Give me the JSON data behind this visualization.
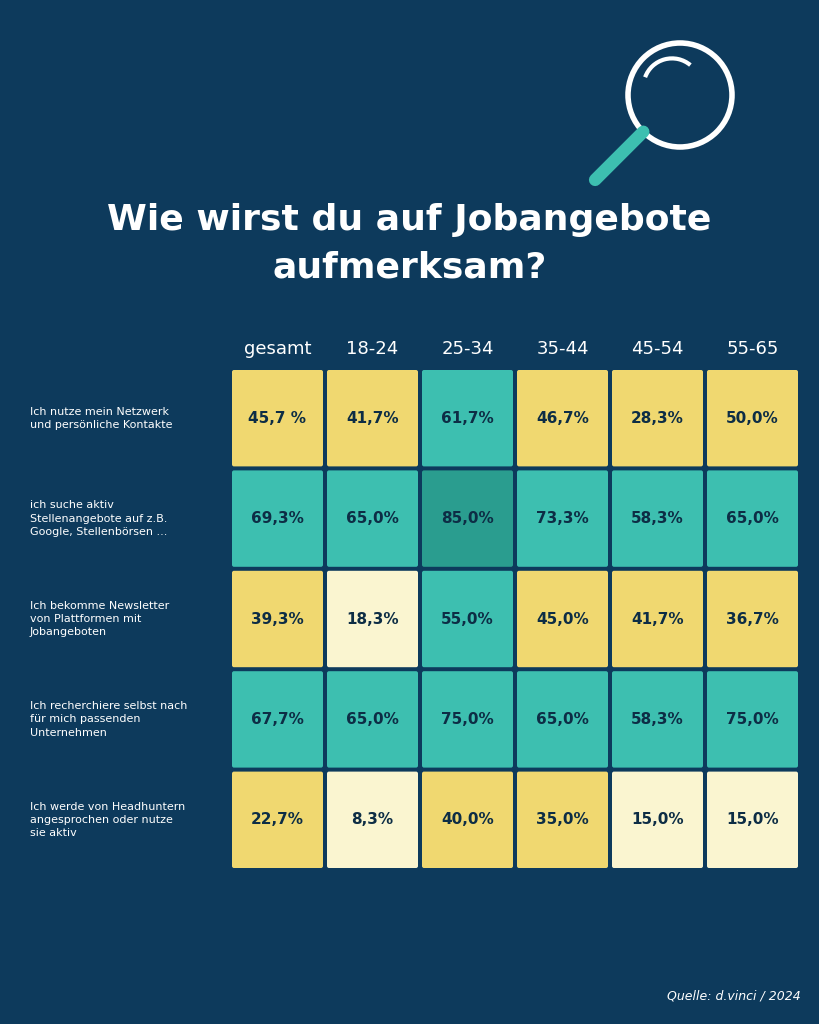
{
  "title_line1": "Wie wirst du auf Jobangebote",
  "title_line2": "aufmerksam?",
  "background_color": "#0d3a5c",
  "columns": [
    "gesamt",
    "18-24",
    "25-34",
    "35-44",
    "45-54",
    "55-65"
  ],
  "rows": [
    {
      "label": "Ich nutze mein Netzwerk\nund persönliche Kontakte",
      "values": [
        45.7,
        41.7,
        61.7,
        46.7,
        28.3,
        50.0
      ],
      "value_labels": [
        "45,7 %",
        "41,7%",
        "61,7%",
        "46,7%",
        "28,3%",
        "50,0%"
      ]
    },
    {
      "label": "ich suche aktiv\nStellenangebote auf z.B.\nGoogle, Stellenbörsen ...",
      "values": [
        69.3,
        65.0,
        85.0,
        73.3,
        58.3,
        65.0
      ],
      "value_labels": [
        "69,3%",
        "65,0%",
        "85,0%",
        "73,3%",
        "58,3%",
        "65,0%"
      ]
    },
    {
      "label": "Ich bekomme Newsletter\nvon Plattformen mit\nJobangeboten",
      "values": [
        39.3,
        18.3,
        55.0,
        45.0,
        41.7,
        36.7
      ],
      "value_labels": [
        "39,3%",
        "18,3%",
        "55,0%",
        "45,0%",
        "41,7%",
        "36,7%"
      ]
    },
    {
      "label": "Ich recherchiere selbst nach\nfür mich passenden\nUnternehmen",
      "values": [
        67.7,
        65.0,
        75.0,
        65.0,
        58.3,
        75.0
      ],
      "value_labels": [
        "67,7%",
        "65,0%",
        "75,0%",
        "65,0%",
        "58,3%",
        "75,0%"
      ]
    },
    {
      "label": "Ich werde von Headhuntern\nangesprochen oder nutze\nsie aktiv",
      "values": [
        22.7,
        8.3,
        40.0,
        35.0,
        15.0,
        15.0
      ],
      "value_labels": [
        "22,7%",
        "8,3%",
        "40,0%",
        "35,0%",
        "15,0%",
        "15,0%"
      ]
    }
  ],
  "cell_colors": [
    [
      "#f0d870",
      "#f0d870",
      "#3dbfb0",
      "#f0d870",
      "#f0d870",
      "#f0d870"
    ],
    [
      "#3dbfb0",
      "#3dbfb0",
      "#2a9d8f",
      "#3dbfb0",
      "#3dbfb0",
      "#3dbfb0"
    ],
    [
      "#f0d870",
      "#faf5d0",
      "#3dbfb0",
      "#f0d870",
      "#f0d870",
      "#f0d870"
    ],
    [
      "#3dbfb0",
      "#3dbfb0",
      "#3dbfb0",
      "#3dbfb0",
      "#3dbfb0",
      "#3dbfb0"
    ],
    [
      "#f0d870",
      "#faf5d0",
      "#f0d870",
      "#f0d870",
      "#faf5d0",
      "#faf5d0"
    ]
  ],
  "color_teal_dark": "#2a9d8f",
  "color_teal_light": "#3dbfb0",
  "color_yellow": "#f0d870",
  "color_cream": "#faf5d0",
  "text_color_dark": "#0d2d45",
  "source_text": "Quelle: d.vinci / 2024"
}
